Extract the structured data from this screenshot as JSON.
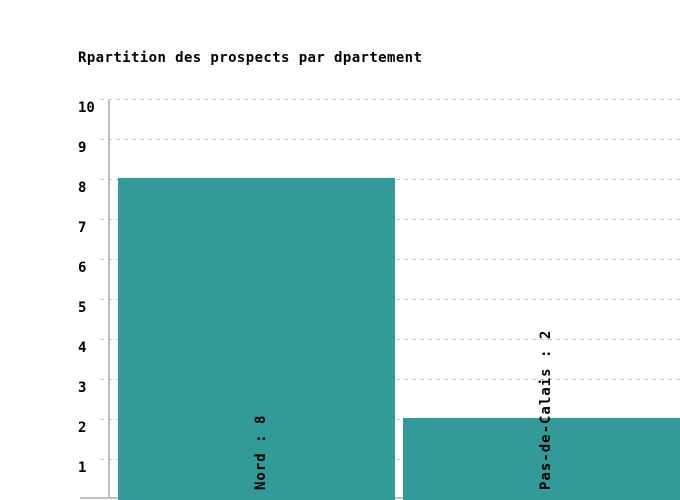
{
  "page": {
    "background": "#ffffff"
  },
  "chart_data": {
    "type": "bar",
    "title": "Rpartition des prospects par dpartement",
    "categories": [
      "Nord",
      "Pas-de-Calais"
    ],
    "values": [
      8,
      2
    ],
    "bar_labels": [
      "Nord : 8",
      "Pas-de-Calais : 2"
    ],
    "y_ticks": [
      "1",
      "2",
      "3",
      "4",
      "5",
      "6",
      "7",
      "8",
      "9",
      "10"
    ],
    "ylim": [
      0,
      10
    ],
    "xlabel": "",
    "ylabel": "",
    "grid": "horizontal-dashed",
    "legend": "none",
    "colors": {
      "bar": "#339A9A",
      "grid": "#C6C6C6",
      "axis": "#C0C0C0",
      "text": "#000000"
    }
  }
}
